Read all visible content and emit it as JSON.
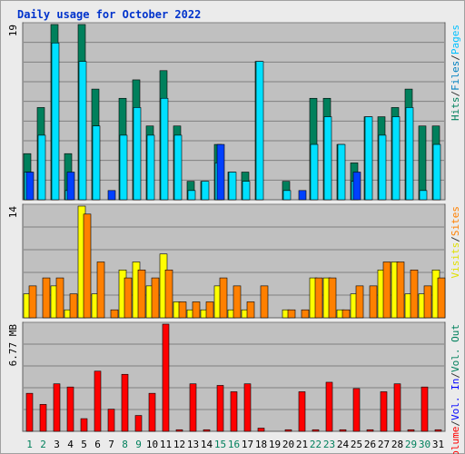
{
  "chart_data": [
    {
      "type": "bar",
      "title": "Daily usage for October 2022",
      "ymax_label": "19",
      "ylim": [
        0,
        19
      ],
      "categories": [
        "1",
        "2",
        "3",
        "4",
        "5",
        "6",
        "7",
        "8",
        "9",
        "10",
        "11",
        "12",
        "13",
        "14",
        "15",
        "16",
        "17",
        "18",
        "19",
        "20",
        "21",
        "22",
        "23",
        "24",
        "25",
        "26",
        "27",
        "28",
        "29",
        "30",
        "31"
      ],
      "weekend_days": [
        "1",
        "2",
        "8",
        "9",
        "15",
        "16",
        "22",
        "23",
        "29",
        "30"
      ],
      "legend": [
        {
          "label": "Hits",
          "color": "#00805c"
        },
        {
          "label": "/",
          "color": "#333333"
        },
        {
          "label": "Files",
          "color": "#0080c0"
        },
        {
          "label": "/",
          "color": "#333333"
        },
        {
          "label": "Pages",
          "color": "#00c0ff"
        }
      ],
      "series": [
        {
          "name": "Hits",
          "color": "#00805c",
          "values": [
            5,
            10,
            19,
            5,
            19,
            12,
            0,
            11,
            13,
            8,
            14,
            8,
            2,
            2,
            6,
            3,
            3,
            15,
            0,
            2,
            0,
            11,
            11,
            6,
            4,
            9,
            9,
            10,
            12,
            8,
            8
          ]
        },
        {
          "name": "Files",
          "color": "#0040ff",
          "values": [
            3,
            0,
            0,
            3,
            0,
            0,
            1,
            0,
            0,
            0,
            0,
            0,
            0,
            0,
            6,
            0,
            0,
            0,
            0,
            0,
            1,
            0,
            0,
            0,
            3,
            0,
            0,
            0,
            0,
            0,
            0
          ]
        },
        {
          "name": "Pages",
          "color": "#00e0ff",
          "values": [
            3,
            7,
            17,
            1,
            15,
            8,
            0,
            7,
            10,
            7,
            11,
            7,
            1,
            2,
            4,
            3,
            2,
            15,
            0,
            1,
            0,
            6,
            9,
            6,
            2,
            9,
            7,
            9,
            10,
            1,
            6
          ]
        }
      ]
    },
    {
      "type": "bar",
      "ymax_label": "14",
      "ylim": [
        0,
        14
      ],
      "categories": [
        "1",
        "2",
        "3",
        "4",
        "5",
        "6",
        "7",
        "8",
        "9",
        "10",
        "11",
        "12",
        "13",
        "14",
        "15",
        "16",
        "17",
        "18",
        "19",
        "20",
        "21",
        "22",
        "23",
        "24",
        "25",
        "26",
        "27",
        "28",
        "29",
        "30",
        "31"
      ],
      "legend": [
        {
          "label": "Visits",
          "color": "#e0e000"
        },
        {
          "label": "/",
          "color": "#333333"
        },
        {
          "label": "Sites",
          "color": "#ff8000"
        }
      ],
      "series": [
        {
          "name": "Visits",
          "color": "#ffff00",
          "values": [
            3,
            0,
            4,
            1,
            14,
            3,
            0,
            6,
            7,
            4,
            8,
            2,
            1,
            1,
            4,
            1,
            1,
            0,
            0,
            1,
            0,
            5,
            5,
            1,
            3,
            0,
            6,
            7,
            3,
            3,
            6
          ]
        },
        {
          "name": "Sites",
          "color": "#ff8000",
          "values": [
            4,
            5,
            5,
            3,
            13,
            7,
            1,
            5,
            6,
            5,
            6,
            2,
            2,
            2,
            5,
            4,
            2,
            4,
            0,
            1,
            1,
            5,
            5,
            1,
            4,
            4,
            7,
            7,
            6,
            4,
            5
          ]
        }
      ]
    },
    {
      "type": "bar",
      "ymax_label": "6.77 MB",
      "ylim": [
        0,
        6.77
      ],
      "categories": [
        "1",
        "2",
        "3",
        "4",
        "5",
        "6",
        "7",
        "8",
        "9",
        "10",
        "11",
        "12",
        "13",
        "14",
        "15",
        "16",
        "17",
        "18",
        "19",
        "20",
        "21",
        "22",
        "23",
        "24",
        "25",
        "26",
        "27",
        "28",
        "29",
        "30",
        "31"
      ],
      "legend": [
        {
          "label": "Volume",
          "color": "#ff0000"
        },
        {
          "label": "/",
          "color": "#333333"
        },
        {
          "label": "Vol. In",
          "color": "#0000ff"
        },
        {
          "label": "/",
          "color": "#333333"
        },
        {
          "label": "Vol. Out",
          "color": "#00805c"
        }
      ],
      "series": [
        {
          "name": "Volume",
          "color": "#ff0000",
          "values": [
            2.4,
            1.7,
            3.0,
            2.8,
            0.8,
            3.8,
            1.4,
            3.6,
            1.0,
            2.4,
            6.77,
            0.1,
            3.0,
            0.1,
            2.9,
            2.5,
            3.0,
            0.2,
            0.0,
            0.1,
            2.5,
            0.1,
            3.1,
            0.1,
            2.7,
            0.1,
            2.5,
            3.0,
            0.1,
            2.8,
            0.1
          ]
        }
      ]
    }
  ]
}
